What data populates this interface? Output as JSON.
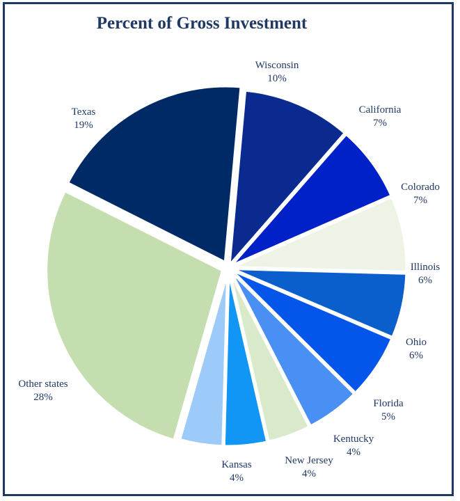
{
  "chart_data": {
    "type": "pie",
    "title": "Percent of Gross Investment",
    "slices": [
      {
        "label": "Wisconsin",
        "value": 10,
        "pct_label": "10%",
        "color": "#0a2a8f"
      },
      {
        "label": "California",
        "value": 7,
        "pct_label": "7%",
        "color": "#0020c8"
      },
      {
        "label": "Colorado",
        "value": 7,
        "pct_label": "7%",
        "color": "#edf4e6"
      },
      {
        "label": "Illinois",
        "value": 6,
        "pct_label": "6%",
        "color": "#0b5fcc"
      },
      {
        "label": "Ohio",
        "value": 6,
        "pct_label": "6%",
        "color": "#0455ea"
      },
      {
        "label": "Florida",
        "value": 5,
        "pct_label": "5%",
        "color": "#4a8ff4"
      },
      {
        "label": "Kentucky",
        "value": 4,
        "pct_label": "4%",
        "color": "#d9eacb"
      },
      {
        "label": "New Jersey",
        "value": 4,
        "pct_label": "4%",
        "color": "#1296f6"
      },
      {
        "label": "Kansas",
        "value": 4,
        "pct_label": "4%",
        "color": "#9ccaf9"
      },
      {
        "label": "Other states",
        "value": 28,
        "pct_label": "28%",
        "color": "#c5deb0"
      },
      {
        "label": "Texas",
        "value": 19,
        "pct_label": "19%",
        "color": "#002a66"
      }
    ]
  }
}
